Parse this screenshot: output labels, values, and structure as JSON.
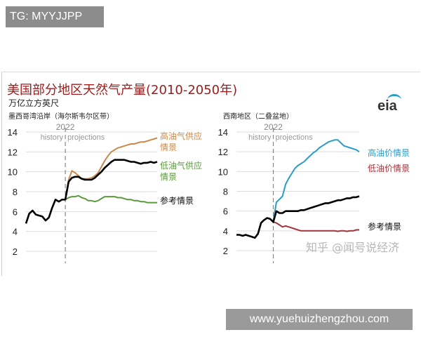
{
  "watermark_top": "TG: MYYJJPP",
  "watermark_bottom": "www.yuehuizhengzhou.com",
  "watermark_zhihu": "知乎 @闻号说经济",
  "title": "美国部分地区天然气产量(2010-2050年)",
  "unit": "万亿立方英尺",
  "logo": "eia",
  "chart_data": [
    {
      "type": "line",
      "title": "墨西哥湾沿岸（海尔斯韦尔区带）",
      "ylim": [
        2,
        14
      ],
      "yticks": [
        2,
        4,
        6,
        8,
        10,
        12,
        14
      ],
      "grid": true,
      "divider": {
        "year": 2022,
        "label": "2022",
        "left": "history",
        "right": "projections"
      },
      "x_start": 2010,
      "series": [
        {
          "name": "高油气供应情景",
          "color": "#c8894a",
          "start": 2022,
          "values": [
            7.2,
            9.2,
            10.1,
            9.9,
            9.6,
            9.3,
            9.3,
            9.3,
            9.4,
            9.6,
            9.9,
            10.5,
            11.1,
            11.6,
            12.0,
            12.2,
            12.4,
            12.5,
            12.6,
            12.7,
            12.8,
            12.8,
            12.9,
            13.0,
            13.0,
            13.1,
            13.2,
            13.3,
            13.4
          ]
        },
        {
          "name": "低油气供应情景",
          "color": "#5a9a3c",
          "start": 2022,
          "values": [
            7.2,
            7.4,
            7.5,
            7.5,
            7.6,
            7.4,
            7.3,
            7.1,
            7.1,
            7.0,
            7.1,
            7.3,
            7.5,
            7.5,
            7.5,
            7.5,
            7.4,
            7.4,
            7.3,
            7.2,
            7.2,
            7.1,
            7.1,
            7.0,
            7.0,
            6.9,
            6.9,
            6.9,
            6.9
          ]
        },
        {
          "name": "参考情景",
          "color": "#000000",
          "start": 2010,
          "values": [
            4.8,
            5.8,
            6.1,
            5.7,
            5.6,
            5.5,
            5.1,
            5.4,
            6.4,
            7.2,
            7.0,
            7.2,
            7.2,
            9.0,
            9.4,
            9.5,
            9.5,
            9.3,
            9.2,
            9.2,
            9.2,
            9.4,
            9.7,
            10.0,
            10.4,
            10.7,
            11.0,
            11.2,
            11.2,
            11.2,
            11.2,
            11.1,
            11.0,
            11.0,
            10.9,
            10.8,
            10.9,
            10.9,
            11.0,
            10.9,
            11.0
          ]
        }
      ]
    },
    {
      "type": "line",
      "title": "西南地区（二叠盆地）",
      "ylim": [
        2,
        14
      ],
      "yticks": [
        2,
        4,
        6,
        8,
        10,
        12,
        14
      ],
      "grid": true,
      "divider": {
        "year": 2022,
        "label": "2022",
        "left": "history",
        "right": "projections"
      },
      "x_start": 2010,
      "series": [
        {
          "name": "高油价情景",
          "color": "#2a9cc8",
          "start": 2022,
          "values": [
            5.0,
            6.9,
            7.2,
            7.5,
            8.7,
            9.3,
            9.8,
            10.3,
            10.6,
            10.8,
            11.0,
            11.3,
            11.6,
            11.9,
            12.1,
            12.4,
            12.6,
            12.8,
            13.0,
            13.1,
            13.2,
            13.2,
            12.9,
            12.6,
            12.5,
            12.4,
            12.3,
            12.2,
            12.0
          ]
        },
        {
          "name": "低油价情景",
          "color": "#a0343c",
          "start": 2022,
          "values": [
            4.9,
            4.8,
            4.6,
            4.4,
            4.5,
            4.4,
            4.3,
            4.2,
            4.1,
            4.0,
            4.0,
            4.0,
            4.0,
            4.0,
            4.0,
            4.0,
            4.0,
            4.0,
            4.0,
            4.0,
            4.0,
            3.95,
            4.0,
            4.0,
            3.95,
            4.0,
            4.0,
            4.1,
            4.1
          ]
        },
        {
          "name": "参考情景",
          "color": "#000000",
          "start": 2010,
          "values": [
            3.6,
            3.6,
            3.5,
            3.6,
            3.5,
            3.4,
            3.3,
            3.7,
            4.8,
            5.1,
            5.3,
            5.2,
            4.9,
            6.0,
            5.8,
            5.8,
            6.0,
            6.0,
            6.0,
            6.0,
            6.0,
            6.1,
            6.1,
            6.2,
            6.3,
            6.4,
            6.5,
            6.6,
            6.7,
            6.8,
            6.8,
            6.9,
            7.0,
            7.1,
            7.1,
            7.2,
            7.3,
            7.3,
            7.4,
            7.4,
            7.5
          ]
        }
      ]
    }
  ]
}
